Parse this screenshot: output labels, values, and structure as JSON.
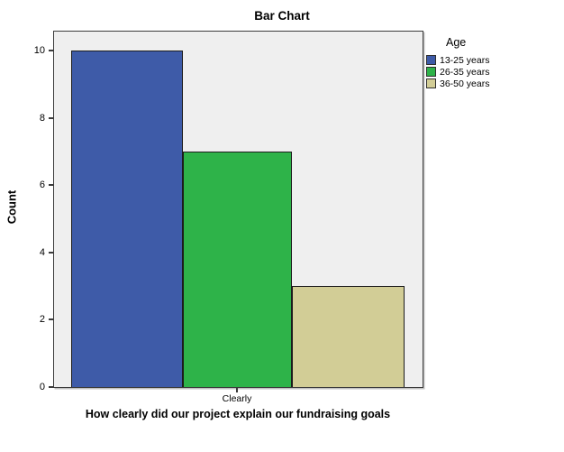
{
  "chart_data": {
    "type": "bar",
    "title": "Bar Chart",
    "xlabel": "How clearly did our project explain our fundraising goals",
    "ylabel": "Count",
    "categories": [
      "Clearly"
    ],
    "series": [
      {
        "name": "13-25 years",
        "values": [
          10
        ],
        "color": "#3E5BA8"
      },
      {
        "name": "26-35 years",
        "values": [
          7
        ],
        "color": "#2EB349"
      },
      {
        "name": "36-50 years",
        "values": [
          3
        ],
        "color": "#D2CD96"
      }
    ],
    "legend_title": "Age",
    "legend_position": "right",
    "ylim": [
      0,
      10.57
    ],
    "yticks": [
      0,
      2,
      4,
      6,
      8,
      10
    ],
    "grid": false,
    "plot_background": "#EFEFEF",
    "bar_border_color": "#1C1C1C",
    "frame_color": "#3B3B3B"
  }
}
